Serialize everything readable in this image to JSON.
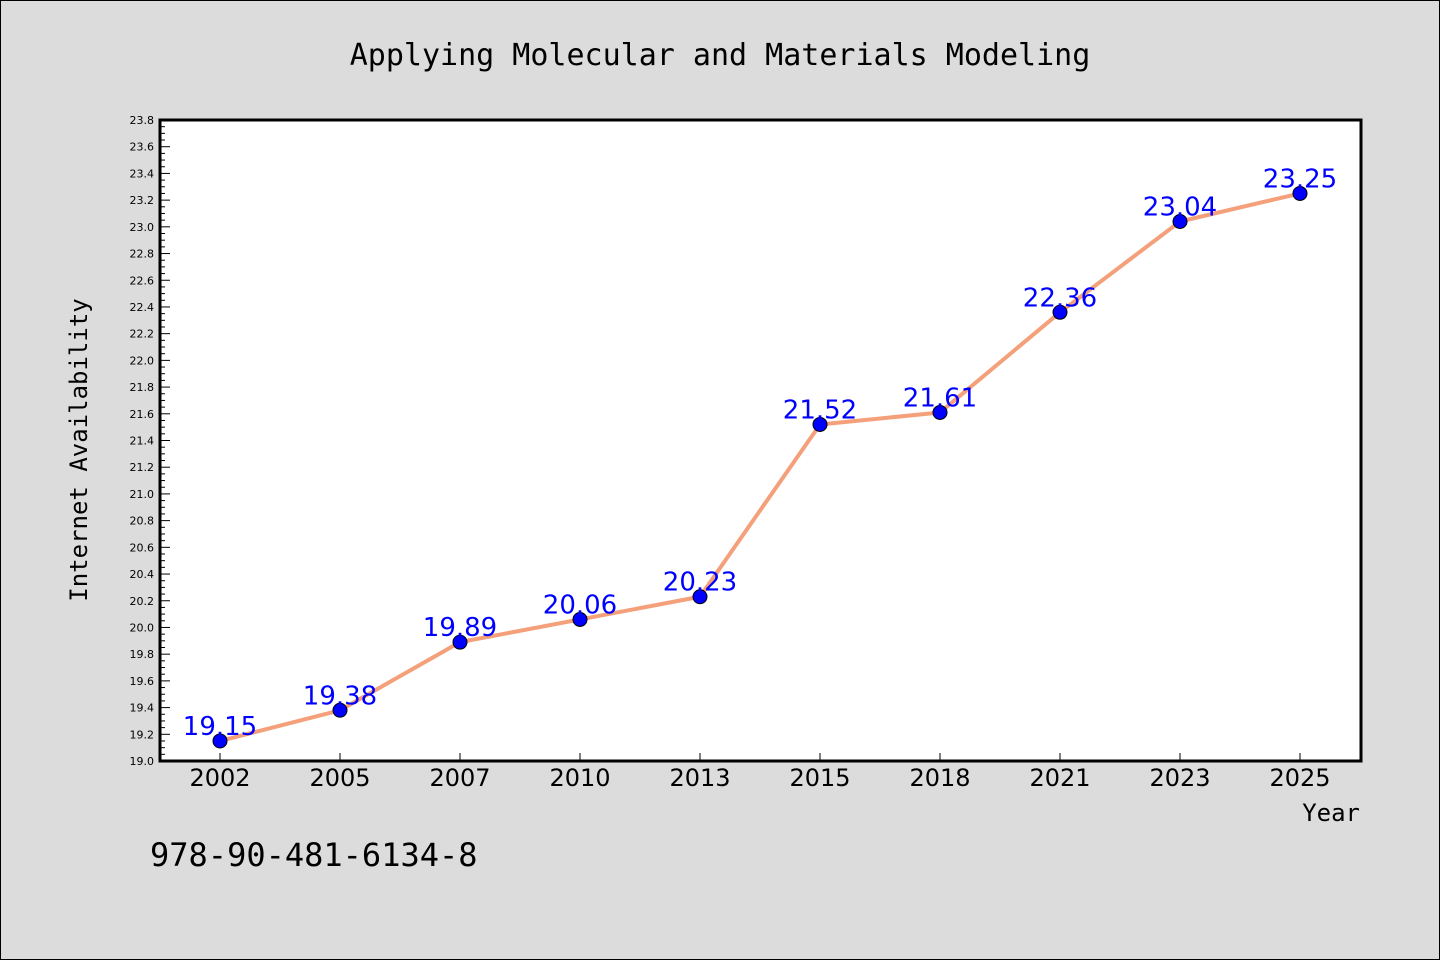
{
  "colors": {
    "background": "#dcdcdc",
    "plot_area": "#ffffff",
    "line": "#f4a07a",
    "marker": "#0000ff",
    "data_label": "#0000ff"
  },
  "footer_text": "978-90-481-6134-8",
  "chart_data": {
    "type": "line",
    "title": "Applying Molecular and Materials Modeling",
    "xlabel": "Year",
    "ylabel": "Internet Availability",
    "categories": [
      "2002",
      "2005",
      "2007",
      "2010",
      "2013",
      "2015",
      "2018",
      "2021",
      "2023",
      "2025"
    ],
    "series": [
      {
        "values": [
          19.15,
          19.38,
          19.89,
          20.06,
          20.23,
          21.52,
          21.61,
          22.36,
          23.04,
          23.25
        ]
      }
    ],
    "ylim": [
      19.0,
      23.8
    ],
    "yticks": [
      "19.0",
      "19.2",
      "19.4",
      "19.6",
      "19.8",
      "20.0",
      "20.2",
      "20.4",
      "20.6",
      "20.8",
      "21.0",
      "21.2",
      "21.4",
      "21.6",
      "21.8",
      "22.0",
      "22.2",
      "22.4",
      "22.6",
      "22.8",
      "23.0",
      "23.2",
      "23.4",
      "23.6",
      "23.8"
    ],
    "data_labels": [
      "19.15",
      "19.38",
      "19.89",
      "20.06",
      "20.23",
      "21.52",
      "21.61",
      "22.36",
      "23.04",
      "23.25"
    ],
    "grid": false,
    "legend": "none"
  }
}
